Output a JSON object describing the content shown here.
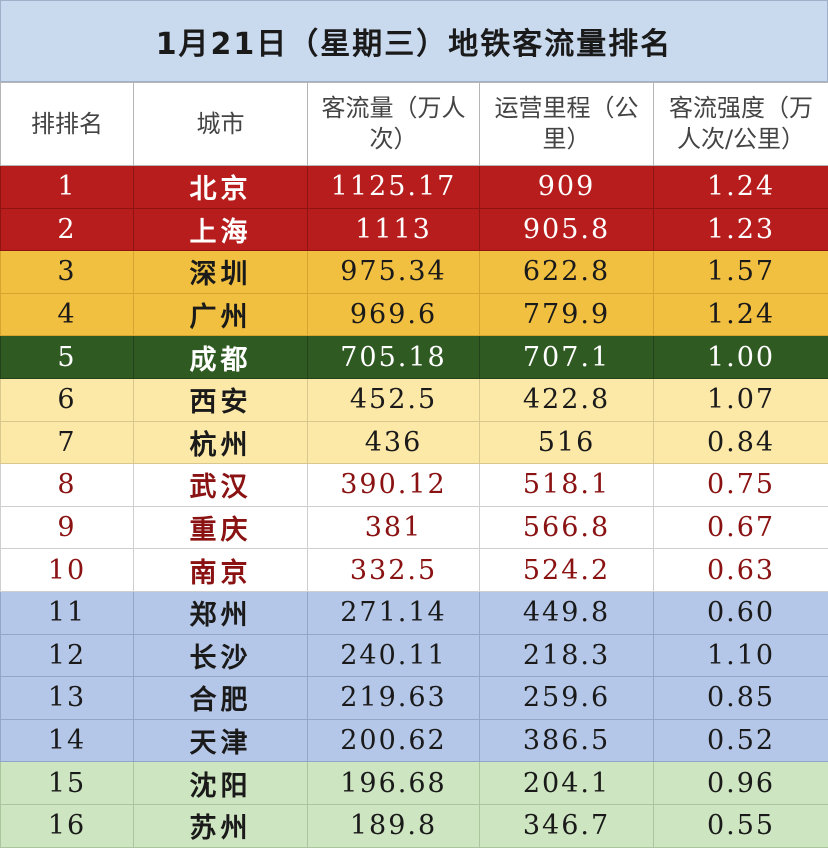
{
  "title": "1月21日（星期三）地铁客流量排名",
  "table": {
    "headers": [
      "排排名",
      "城市",
      "客流量（万人次）",
      "运营里程（公里）",
      "客流强度（万人次/公里）"
    ],
    "rows": [
      {
        "rank": "1",
        "city": "北京",
        "flow": "1125.17",
        "mileage": "909",
        "intensity": "1.24",
        "band": "red"
      },
      {
        "rank": "2",
        "city": "上海",
        "flow": "1113",
        "mileage": "905.8",
        "intensity": "1.23",
        "band": "red"
      },
      {
        "rank": "3",
        "city": "深圳",
        "flow": "975.34",
        "mileage": "622.8",
        "intensity": "1.57",
        "band": "orange"
      },
      {
        "rank": "4",
        "city": "广州",
        "flow": "969.6",
        "mileage": "779.9",
        "intensity": "1.24",
        "band": "orange"
      },
      {
        "rank": "5",
        "city": "成都",
        "flow": "705.18",
        "mileage": "707.1",
        "intensity": "1.00",
        "band": "green"
      },
      {
        "rank": "6",
        "city": "西安",
        "flow": "452.5",
        "mileage": "422.8",
        "intensity": "1.07",
        "band": "lightyellow"
      },
      {
        "rank": "7",
        "city": "杭州",
        "flow": "436",
        "mileage": "516",
        "intensity": "0.84",
        "band": "lightyellow"
      },
      {
        "rank": "8",
        "city": "武汉",
        "flow": "390.12",
        "mileage": "518.1",
        "intensity": "0.75",
        "band": "white"
      },
      {
        "rank": "9",
        "city": "重庆",
        "flow": "381",
        "mileage": "566.8",
        "intensity": "0.67",
        "band": "white"
      },
      {
        "rank": "10",
        "city": "南京",
        "flow": "332.5",
        "mileage": "524.2",
        "intensity": "0.63",
        "band": "white"
      },
      {
        "rank": "11",
        "city": "郑州",
        "flow": "271.14",
        "mileage": "449.8",
        "intensity": "0.60",
        "band": "blue"
      },
      {
        "rank": "12",
        "city": "长沙",
        "flow": "240.11",
        "mileage": "218.3",
        "intensity": "1.10",
        "band": "blue"
      },
      {
        "rank": "13",
        "city": "合肥",
        "flow": "219.63",
        "mileage": "259.6",
        "intensity": "0.85",
        "band": "blue"
      },
      {
        "rank": "14",
        "city": "天津",
        "flow": "200.62",
        "mileage": "386.5",
        "intensity": "0.52",
        "band": "blue"
      },
      {
        "rank": "15",
        "city": "沈阳",
        "flow": "196.68",
        "mileage": "204.1",
        "intensity": "0.96",
        "band": "lightgreen"
      },
      {
        "rank": "16",
        "city": "苏州",
        "flow": "189.8",
        "mileage": "346.7",
        "intensity": "0.55",
        "band": "lightgreen"
      }
    ]
  },
  "band_colors": {
    "red": "#b81d1d",
    "orange": "#f2c040",
    "green": "#2f5a22",
    "lightyellow": "#fce9a8",
    "white": "#ffffff",
    "blue": "#b5c7e8",
    "lightgreen": "#cde5c0"
  }
}
